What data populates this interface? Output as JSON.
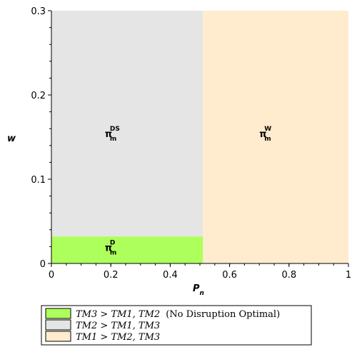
{
  "chart_data": {
    "type": "heatmap",
    "xlabel": {
      "base": "P",
      "sub": "n"
    },
    "ylabel": "w",
    "xlim": [
      0,
      1
    ],
    "ylim": [
      0,
      0.3
    ],
    "x_ticks": [
      {
        "value": 0,
        "label": "0"
      },
      {
        "value": 0.2,
        "label": "0.2"
      },
      {
        "value": 0.4,
        "label": "0.4"
      },
      {
        "value": 0.6,
        "label": "0.6"
      },
      {
        "value": 0.8,
        "label": "0.8"
      },
      {
        "value": 1,
        "label": "1"
      }
    ],
    "y_ticks": [
      {
        "value": 0,
        "label": "0"
      },
      {
        "value": 0.1,
        "label": "0.1"
      },
      {
        "value": 0.2,
        "label": "0.2"
      },
      {
        "value": 0.3,
        "label": "0.3"
      }
    ],
    "regions": [
      {
        "name": "DS",
        "symbol": "π",
        "sup": "DS",
        "sub": "m",
        "x": [
          0,
          0.51
        ],
        "y": [
          0.032,
          0.3
        ],
        "color": "#e5e5e5",
        "label_at": [
          0.18,
          0.15
        ]
      },
      {
        "name": "W",
        "symbol": "π",
        "sup": "W",
        "sub": "m",
        "x": [
          0.51,
          1
        ],
        "y": [
          0,
          0.3
        ],
        "color": "#ffebcd",
        "label_at": [
          0.7,
          0.15
        ]
      },
      {
        "name": "D",
        "symbol": "π",
        "sup": "D",
        "sub": "m",
        "x": [
          0,
          0.51
        ],
        "y": [
          0,
          0.032
        ],
        "color": "#adff5c",
        "label_at": [
          0.18,
          0.015
        ]
      }
    ],
    "legend": {
      "placement": "bottom",
      "entries": [
        {
          "text": "TM3 > TM1, TM2",
          "note": "(No Disruption Optimal)",
          "color": "#adff5c"
        },
        {
          "text": "TM2 > TM1, TM3",
          "note": "",
          "color": "#e5e5e5"
        },
        {
          "text": "TM1 > TM2, TM3",
          "note": "",
          "color": "#ffebcd"
        }
      ]
    }
  }
}
